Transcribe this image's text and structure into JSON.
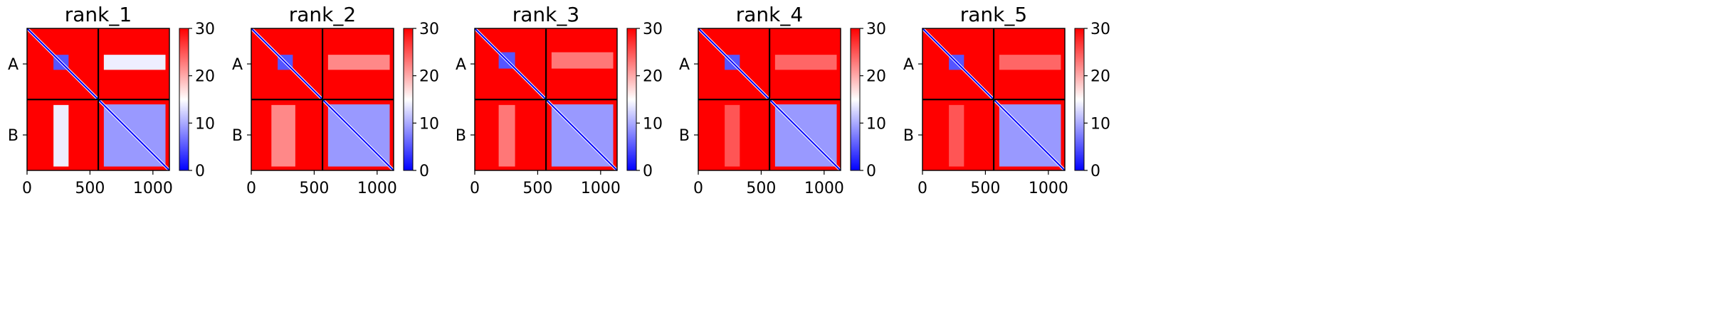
{
  "colors": {
    "red": "#ff0000",
    "white": "#ffffff",
    "blue": "#0000ff",
    "line": "#000000"
  },
  "chart_data": [
    {
      "type": "heatmap",
      "title": "rank_1",
      "chains": [
        "A",
        "B"
      ],
      "chain_boundary": 566,
      "xlim": [
        0,
        1131
      ],
      "xticks": [
        0,
        500,
        1000
      ],
      "colorbar": {
        "min": 0,
        "max": 30,
        "ticks": [
          0,
          10,
          20,
          30
        ]
      },
      "regions": [
        {
          "x": [
            210,
            330
          ],
          "y": [
            210,
            330
          ],
          "value": 5
        },
        {
          "x": [
            610,
            1100
          ],
          "y": [
            605,
            1100
          ],
          "value": 9
        },
        {
          "x": [
            610,
            1100
          ],
          "y": [
            210,
            330
          ],
          "value": 14
        },
        {
          "x": [
            210,
            330
          ],
          "y": [
            610,
            1100
          ],
          "value": 14
        }
      ]
    },
    {
      "type": "heatmap",
      "title": "rank_2",
      "chains": [
        "A",
        "B"
      ],
      "chain_boundary": 566,
      "xlim": [
        0,
        1131
      ],
      "xticks": [
        0,
        500,
        1000
      ],
      "colorbar": {
        "min": 0,
        "max": 30,
        "ticks": [
          0,
          10,
          20,
          30
        ]
      },
      "regions": [
        {
          "x": [
            210,
            330
          ],
          "y": [
            210,
            330
          ],
          "value": 5
        },
        {
          "x": [
            610,
            1100
          ],
          "y": [
            605,
            1100
          ],
          "value": 9
        },
        {
          "x": [
            610,
            1100
          ],
          "y": [
            210,
            330
          ],
          "value": 22
        },
        {
          "x": [
            160,
            350
          ],
          "y": [
            610,
            1100
          ],
          "value": 22
        }
      ]
    },
    {
      "type": "heatmap",
      "title": "rank_3",
      "chains": [
        "A",
        "B"
      ],
      "chain_boundary": 566,
      "xlim": [
        0,
        1131
      ],
      "xticks": [
        0,
        500,
        1000
      ],
      "colorbar": {
        "min": 0,
        "max": 30,
        "ticks": [
          0,
          10,
          20,
          30
        ]
      },
      "regions": [
        {
          "x": [
            190,
            320
          ],
          "y": [
            190,
            320
          ],
          "value": 5
        },
        {
          "x": [
            610,
            1100
          ],
          "y": [
            605,
            1100
          ],
          "value": 9
        },
        {
          "x": [
            610,
            1100
          ],
          "y": [
            190,
            320
          ],
          "value": 23
        },
        {
          "x": [
            190,
            320
          ],
          "y": [
            610,
            1100
          ],
          "value": 23
        }
      ]
    },
    {
      "type": "heatmap",
      "title": "rank_4",
      "chains": [
        "A",
        "B"
      ],
      "chain_boundary": 566,
      "xlim": [
        0,
        1131
      ],
      "xticks": [
        0,
        500,
        1000
      ],
      "colorbar": {
        "min": 0,
        "max": 30,
        "ticks": [
          0,
          10,
          20,
          30
        ]
      },
      "regions": [
        {
          "x": [
            210,
            330
          ],
          "y": [
            210,
            330
          ],
          "value": 5
        },
        {
          "x": [
            610,
            1100
          ],
          "y": [
            605,
            1100
          ],
          "value": 9
        },
        {
          "x": [
            610,
            1100
          ],
          "y": [
            210,
            330
          ],
          "value": 24
        },
        {
          "x": [
            210,
            330
          ],
          "y": [
            610,
            1100
          ],
          "value": 25
        }
      ]
    },
    {
      "type": "heatmap",
      "title": "rank_5",
      "chains": [
        "A",
        "B"
      ],
      "chain_boundary": 566,
      "xlim": [
        0,
        1131
      ],
      "xticks": [
        0,
        500,
        1000
      ],
      "colorbar": {
        "min": 0,
        "max": 30,
        "ticks": [
          0,
          10,
          20,
          30
        ]
      },
      "regions": [
        {
          "x": [
            210,
            330
          ],
          "y": [
            210,
            330
          ],
          "value": 5
        },
        {
          "x": [
            610,
            1100
          ],
          "y": [
            605,
            1100
          ],
          "value": 9
        },
        {
          "x": [
            610,
            1100
          ],
          "y": [
            210,
            330
          ],
          "value": 24
        },
        {
          "x": [
            210,
            330
          ],
          "y": [
            610,
            1100
          ],
          "value": 25
        }
      ]
    }
  ]
}
